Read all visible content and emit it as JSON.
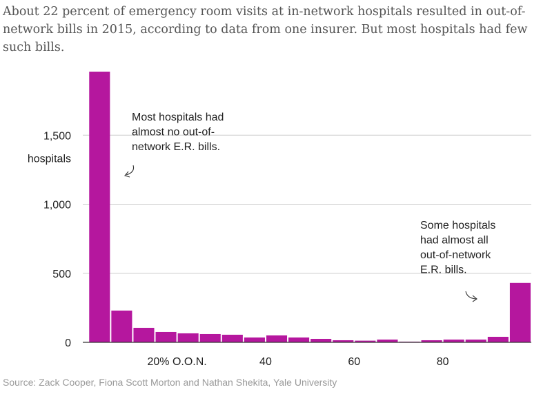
{
  "subtitle": "About 22 percent of emergency room visits at in-network hospitals resulted in out-of-network bills in 2015, according to data from one insurer. But most hospitals had few such bills.",
  "source": "Source: Zack Cooper, Fiona Scott Morton and Nathan Shekita, Yale University",
  "colors": {
    "bar": "#b5179e",
    "grid": "#cccccc",
    "axis": "#333333"
  },
  "chart_data": {
    "type": "bar",
    "x_bin_start": [
      0,
      5,
      10,
      15,
      20,
      25,
      30,
      35,
      40,
      45,
      50,
      55,
      60,
      65,
      70,
      75,
      80,
      85,
      90,
      95
    ],
    "bin_width": 5,
    "values": [
      1960,
      230,
      105,
      75,
      65,
      60,
      55,
      35,
      50,
      35,
      25,
      15,
      12,
      20,
      5,
      15,
      20,
      20,
      40,
      430
    ],
    "xlim": [
      -1.6,
      100
    ],
    "ylim": [
      0,
      2000
    ],
    "x_ticks": [
      {
        "value": 20,
        "label": "20% O.O.N."
      },
      {
        "value": 40,
        "label": "40"
      },
      {
        "value": 60,
        "label": "60"
      },
      {
        "value": 80,
        "label": "80"
      }
    ],
    "y_ticks": [
      {
        "value": 0,
        "label": "0"
      },
      {
        "value": 500,
        "label": "500"
      },
      {
        "value": 1000,
        "label": "1,000"
      },
      {
        "value": 1500,
        "label": "1,500"
      }
    ],
    "ylabel": "hospitals",
    "grid": true,
    "annotations": [
      {
        "lines": [
          "Most hospitals had",
          "almost no out-of-",
          "network E.R. bills."
        ]
      },
      {
        "lines": [
          "Some hospitals",
          "had almost all",
          "out-of-network",
          "E.R. bills."
        ]
      }
    ]
  }
}
